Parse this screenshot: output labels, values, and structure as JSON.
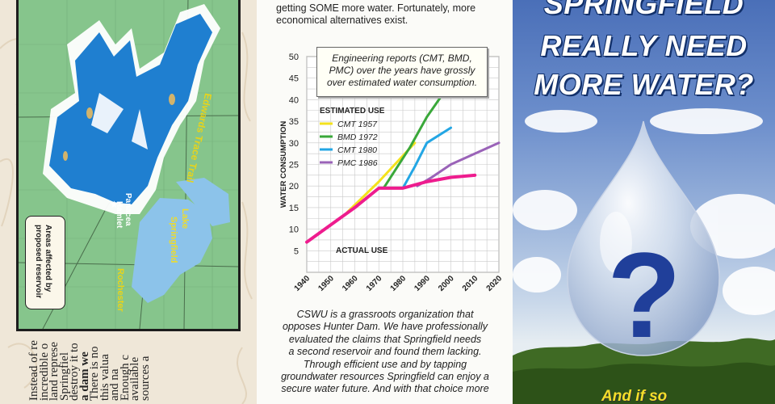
{
  "map": {
    "label_edwards": "Edwards Trace Trail",
    "label_lake_1": "Lake",
    "label_lake_2": "Springfield",
    "label_hamlet_1": "Panacea",
    "label_hamlet_2": "Hamlet",
    "label_rochester": "Rochester",
    "legend_line_1": "Areas affected by",
    "legend_line_2": "proposed reservoir",
    "colors": {
      "reservoir": "#1f7fd0",
      "land": "#86c58c",
      "lake": "#8cc3ea",
      "affected": "#ffffff"
    }
  },
  "left_text": {
    "lines": [
      "Instead of re",
      "incredible o",
      "land represe",
      "Springfiel",
      "destroy it to",
      "a dam we",
      "There is no",
      "this valua",
      "and na",
      "Enough c",
      "available",
      "sources a"
    ]
  },
  "middle": {
    "intro": "getting SOME more water.  Fortunately, more economical alternatives exist.",
    "info_box_lines": [
      "Engineering reports (CMT, BMD,",
      "PMC) over the years have grossly",
      "over estimated water consumption."
    ],
    "bottom_lines": [
      "CSWU is a grassroots organization that",
      "opposes Hunter Dam.  We have professionally",
      "evaluated the claims that Springfield needs",
      "a second reservoir and found them lacking.",
      "Through efficient use and by tapping",
      "groundwater resources Springfield can enjoy a",
      "secure water future.  And with that choice more"
    ]
  },
  "chart_data": {
    "type": "line",
    "ylabel": "WATER CONSUMPTION",
    "xlabel": "",
    "ylim": [
      0,
      50
    ],
    "xlim": [
      1940,
      2020
    ],
    "y_ticks": [
      5,
      10,
      15,
      20,
      25,
      30,
      35,
      40,
      45,
      50
    ],
    "x_ticks": [
      1940,
      1950,
      1960,
      1970,
      1980,
      1990,
      2000,
      2010,
      2020
    ],
    "grid": true,
    "legend_title": "ESTIMATED USE",
    "legend_position": "top-left",
    "actual_label": "ACTUAL USE",
    "series": [
      {
        "name": "CMT 1957",
        "color": "#f4e21c",
        "x": [
          1957,
          1970,
          1985
        ],
        "y": [
          14,
          21,
          30
        ]
      },
      {
        "name": "BMD 1972",
        "color": "#3aa83a",
        "x": [
          1972,
          1983,
          1990,
          2000
        ],
        "y": [
          19.5,
          29,
          36,
          44
        ]
      },
      {
        "name": "CMT 1980",
        "color": "#23a6e4",
        "x": [
          1980,
          1985,
          1990,
          2000
        ],
        "y": [
          19.5,
          24.5,
          30,
          33.5
        ]
      },
      {
        "name": "PMC 1986",
        "color": "#9a63b8",
        "x": [
          1986,
          1992,
          2000,
          2010,
          2020
        ],
        "y": [
          20,
          22,
          25,
          27.5,
          30
        ]
      },
      {
        "name": "ACTUAL USE",
        "color": "#ee1c8e",
        "x": [
          1940,
          1950,
          1960,
          1970,
          1980,
          1990,
          2000,
          2010
        ],
        "y": [
          7,
          11,
          15,
          19.5,
          19.5,
          21,
          22,
          22.5
        ]
      }
    ]
  },
  "right": {
    "headline_1": "SPRINGFIELD",
    "headline_2": "REALLY NEED",
    "headline_3": "MORE WATER?",
    "question_mark": "?",
    "tagline": "And if so"
  }
}
